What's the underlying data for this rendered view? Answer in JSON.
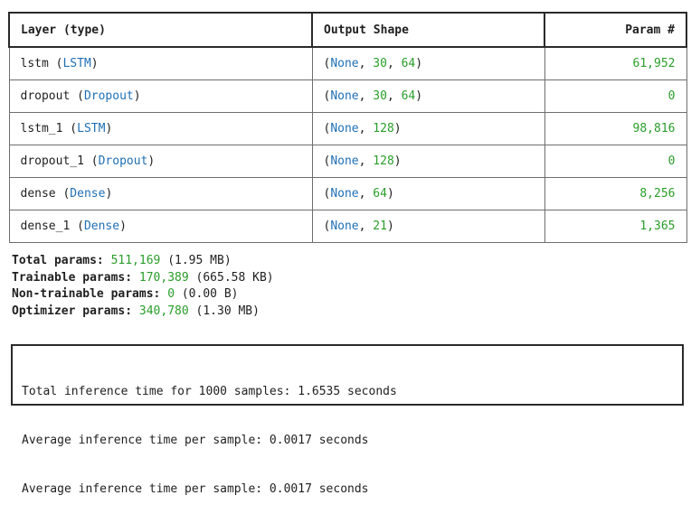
{
  "table": {
    "headers": [
      "Layer (type)",
      "Output Shape",
      "Param #"
    ],
    "rows": [
      {
        "layer": "lstm",
        "type": "LSTM",
        "shape_dims": [
          "None",
          "30",
          "64"
        ],
        "params": "61,952"
      },
      {
        "layer": "dropout",
        "type": "Dropout",
        "shape_dims": [
          "None",
          "30",
          "64"
        ],
        "params": "0"
      },
      {
        "layer": "lstm_1",
        "type": "LSTM",
        "shape_dims": [
          "None",
          "128"
        ],
        "params": "98,816"
      },
      {
        "layer": "dropout_1",
        "type": "Dropout",
        "shape_dims": [
          "None",
          "128"
        ],
        "params": "0"
      },
      {
        "layer": "dense",
        "type": "Dense",
        "shape_dims": [
          "None",
          "64"
        ],
        "params": "8,256"
      },
      {
        "layer": "dense_1",
        "type": "Dense",
        "shape_dims": [
          "None",
          "21"
        ],
        "params": "1,365"
      }
    ]
  },
  "totals": [
    {
      "label": "Total params:",
      "value": "511,169",
      "size": "(1.95 MB)"
    },
    {
      "label": "Trainable params:",
      "value": "170,389",
      "size": "(665.58 KB)"
    },
    {
      "label": "Non-trainable params:",
      "value": "0",
      "size": "(0.00 B)"
    },
    {
      "label": "Optimizer params:",
      "value": "340,780",
      "size": "(1.30 MB)"
    }
  ],
  "inference": {
    "lines": [
      "Total inference time for 1000 samples: 1.6535 seconds",
      "Average inference time per sample: 0.0017 seconds",
      "Average inference time per sample: 0.0017 seconds"
    ]
  },
  "colors": {
    "type_link": "#1f6fb5",
    "number_green": "#2a9d2a",
    "border": "#2a2a2a"
  }
}
